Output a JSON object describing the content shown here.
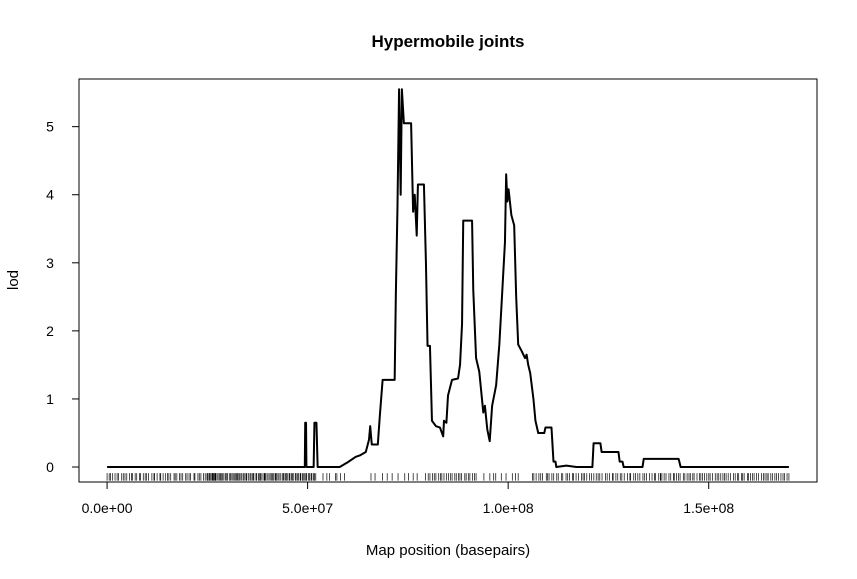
{
  "chart_data": {
    "type": "line",
    "title": "Hypermobile joints",
    "xlabel": "Map position (basepairs)",
    "ylabel": "lod",
    "xlim": [
      -7000000,
      177000000
    ],
    "ylim": [
      -0.22,
      5.7
    ],
    "x_ticks": [
      0,
      50000000,
      100000000,
      150000000
    ],
    "x_tick_labels": [
      "0.0e+00",
      "5.0e+07",
      "1.0e+08",
      "1.5e+08"
    ],
    "y_ticks": [
      0,
      1,
      2,
      3,
      4,
      5
    ],
    "y_tick_labels": [
      "0",
      "1",
      "2",
      "3",
      "4",
      "5"
    ],
    "grid": false,
    "legend": "none",
    "line_color": "#000000",
    "series": [
      {
        "points": [
          [
            0,
            0
          ],
          [
            49300000,
            0
          ],
          [
            49400000,
            0.65
          ],
          [
            49600000,
            0.65
          ],
          [
            49700000,
            0
          ],
          [
            51500000,
            0
          ],
          [
            51700000,
            0.65
          ],
          [
            52200000,
            0.65
          ],
          [
            52500000,
            0
          ],
          [
            58000000,
            0
          ],
          [
            60000000,
            0.07
          ],
          [
            62000000,
            0.15
          ],
          [
            63000000,
            0.17
          ],
          [
            64500000,
            0.22
          ],
          [
            65300000,
            0.4
          ],
          [
            65600000,
            0.6
          ],
          [
            66000000,
            0.33
          ],
          [
            67500000,
            0.33
          ],
          [
            68000000,
            0.75
          ],
          [
            68700000,
            1.28
          ],
          [
            70000000,
            1.28
          ],
          [
            71700000,
            1.28
          ],
          [
            72000000,
            2.55
          ],
          [
            72400000,
            3.8
          ],
          [
            72800000,
            5.55
          ],
          [
            73200000,
            4.0
          ],
          [
            73500000,
            5.55
          ],
          [
            74000000,
            5.05
          ],
          [
            75800000,
            5.05
          ],
          [
            76300000,
            3.75
          ],
          [
            76700000,
            4.0
          ],
          [
            77200000,
            3.4
          ],
          [
            77500000,
            4.15
          ],
          [
            79000000,
            4.15
          ],
          [
            79500000,
            3.0
          ],
          [
            79900000,
            1.78
          ],
          [
            80500000,
            1.78
          ],
          [
            81000000,
            0.68
          ],
          [
            82000000,
            0.6
          ],
          [
            83000000,
            0.58
          ],
          [
            83800000,
            0.45
          ],
          [
            84000000,
            0.68
          ],
          [
            84600000,
            0.65
          ],
          [
            85000000,
            1.05
          ],
          [
            86000000,
            1.28
          ],
          [
            87500000,
            1.3
          ],
          [
            88000000,
            1.5
          ],
          [
            88500000,
            2.1
          ],
          [
            88800000,
            3.62
          ],
          [
            91000000,
            3.62
          ],
          [
            91300000,
            2.6
          ],
          [
            92000000,
            1.6
          ],
          [
            92800000,
            1.4
          ],
          [
            93300000,
            1.1
          ],
          [
            93800000,
            0.8
          ],
          [
            94200000,
            0.9
          ],
          [
            94800000,
            0.55
          ],
          [
            95400000,
            0.38
          ],
          [
            96000000,
            0.9
          ],
          [
            97000000,
            1.2
          ],
          [
            97800000,
            1.8
          ],
          [
            98500000,
            2.55
          ],
          [
            99200000,
            3.3
          ],
          [
            99500000,
            4.3
          ],
          [
            99800000,
            3.9
          ],
          [
            100100000,
            4.08
          ],
          [
            100800000,
            3.7
          ],
          [
            101500000,
            3.55
          ],
          [
            102000000,
            2.5
          ],
          [
            102500000,
            1.8
          ],
          [
            103400000,
            1.7
          ],
          [
            104200000,
            1.6
          ],
          [
            104600000,
            1.65
          ],
          [
            105000000,
            1.5
          ],
          [
            105500000,
            1.38
          ],
          [
            106300000,
            1.0
          ],
          [
            106800000,
            0.68
          ],
          [
            107500000,
            0.5
          ],
          [
            109000000,
            0.5
          ],
          [
            109300000,
            0.58
          ],
          [
            110800000,
            0.58
          ],
          [
            111300000,
            0.08
          ],
          [
            111800000,
            0.08
          ],
          [
            112000000,
            0.0
          ],
          [
            114500000,
            0.02
          ],
          [
            117000000,
            0.0
          ],
          [
            121000000,
            0.0
          ],
          [
            121300000,
            0.35
          ],
          [
            123000000,
            0.35
          ],
          [
            123300000,
            0.22
          ],
          [
            127500000,
            0.22
          ],
          [
            127800000,
            0.08
          ],
          [
            128500000,
            0.08
          ],
          [
            128800000,
            0.0
          ],
          [
            133500000,
            0.0
          ],
          [
            133800000,
            0.12
          ],
          [
            142500000,
            0.12
          ],
          [
            143000000,
            0.0
          ],
          [
            170000000,
            0.0
          ]
        ]
      }
    ],
    "rug": [
      {
        "from": 0,
        "to": 27000000,
        "step": 500000
      },
      {
        "from": 25000000,
        "to": 52000000,
        "step": 300000
      },
      {
        "from": 54000000,
        "to": 60000000,
        "step": 900000
      },
      {
        "from": 66000000,
        "to": 80000000,
        "step": 1300000
      },
      {
        "from": 80000000,
        "to": 92000000,
        "step": 500000
      },
      {
        "from": 94000000,
        "to": 103000000,
        "step": 1100000
      },
      {
        "from": 106000000,
        "to": 138000000,
        "step": 550000
      },
      {
        "from": 138000000,
        "to": 170000000,
        "step": 500000
      }
    ]
  }
}
